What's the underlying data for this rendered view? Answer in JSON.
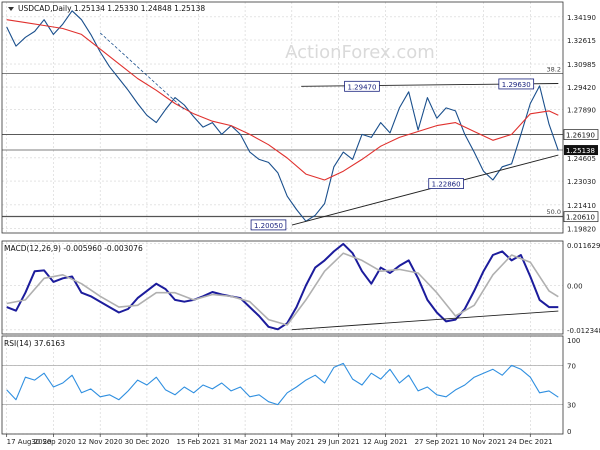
{
  "chart_data": [
    {
      "type": "line",
      "panel": "price",
      "title": "USDCAD,Daily  1.25134 1.25330 1.24848 1.25138",
      "watermark": "ActionForex.com",
      "ylim": [
        1.195,
        1.352
      ],
      "yticks": [
        "1.34190",
        "1.32615",
        "1.30985",
        "1.29420",
        "1.27890",
        "1.26190",
        "1.24605",
        "1.23030",
        "1.21410",
        "1.19820"
      ],
      "ytick_values": [
        1.3419,
        1.32615,
        1.30985,
        1.2942,
        1.2789,
        1.2619,
        1.24605,
        1.2303,
        1.2141,
        1.1982
      ],
      "current_label": "1.25138",
      "current_value": 1.25138,
      "hlines": [
        {
          "label": "38.2",
          "value": 1.3035,
          "color": "#555555"
        },
        {
          "label": "",
          "value": 1.2619,
          "color": "#555555"
        },
        {
          "label": "1.26190",
          "value": 1.2619,
          "color": "#555555"
        },
        {
          "label": "50.0",
          "value": 1.2064,
          "color": "#555555"
        },
        {
          "label": "1.20610",
          "value": 1.2061,
          "color": "#555555"
        },
        {
          "label": "",
          "value": 1.2514,
          "color": "#555555"
        }
      ],
      "annotations": [
        {
          "text": "1.29470",
          "x": 76,
          "y": 1.2947
        },
        {
          "text": "1.29630",
          "x": 109,
          "y": 1.2963
        },
        {
          "text": "1.22860",
          "x": 94,
          "y": 1.2286
        },
        {
          "text": "1.20050",
          "x": 56,
          "y": 1.2005
        }
      ],
      "trendlines": [
        {
          "x": [
            61,
            118
          ],
          "y": [
            1.2004,
            1.248
          ]
        },
        {
          "x": [
            63,
            118
          ],
          "y": [
            1.2947,
            1.2966
          ]
        }
      ],
      "series": [
        {
          "role": "close",
          "color": "#1a4f8c",
          "x": [
            0,
            2,
            4,
            6,
            8,
            10,
            12,
            14,
            16,
            18,
            20,
            22,
            24,
            26,
            28,
            30,
            32,
            34,
            36,
            38,
            40,
            42,
            44,
            46,
            48,
            50,
            52,
            54,
            56,
            58,
            60,
            62,
            64,
            66,
            68,
            70,
            72,
            74,
            76,
            78,
            80,
            82,
            84,
            86,
            88,
            90,
            92,
            94,
            96,
            98,
            100,
            102,
            104,
            106,
            108,
            110,
            112,
            114,
            116,
            118
          ],
          "values": [
            1.335,
            1.322,
            1.328,
            1.332,
            1.34,
            1.33,
            1.337,
            1.346,
            1.34,
            1.33,
            1.318,
            1.308,
            1.3,
            1.292,
            1.283,
            1.275,
            1.27,
            1.279,
            1.287,
            1.282,
            1.274,
            1.267,
            1.27,
            1.262,
            1.268,
            1.262,
            1.25,
            1.245,
            1.243,
            1.236,
            1.22,
            1.211,
            1.203,
            1.207,
            1.215,
            1.24,
            1.25,
            1.245,
            1.262,
            1.26,
            1.27,
            1.263,
            1.28,
            1.291,
            1.265,
            1.287,
            1.273,
            1.28,
            1.278,
            1.262,
            1.25,
            1.237,
            1.231,
            1.24,
            1.242,
            1.262,
            1.283,
            1.295,
            1.269,
            1.251
          ]
        },
        {
          "role": "moving-average",
          "color": "#e0312e",
          "x": [
            0,
            4,
            8,
            12,
            16,
            20,
            24,
            28,
            32,
            36,
            40,
            44,
            48,
            52,
            56,
            60,
            64,
            68,
            72,
            76,
            80,
            84,
            88,
            92,
            96,
            100,
            104,
            108,
            112,
            116,
            118
          ],
          "values": [
            1.34,
            1.338,
            1.336,
            1.334,
            1.33,
            1.32,
            1.31,
            1.3,
            1.292,
            1.283,
            1.276,
            1.271,
            1.268,
            1.262,
            1.255,
            1.246,
            1.235,
            1.231,
            1.237,
            1.245,
            1.254,
            1.26,
            1.264,
            1.268,
            1.27,
            1.264,
            1.258,
            1.262,
            1.276,
            1.278,
            1.275
          ]
        },
        {
          "role": "guide",
          "color": "#1a4f8c",
          "x": [
            20,
            38
          ],
          "values": [
            1.331,
            1.279
          ]
        }
      ]
    },
    {
      "type": "line",
      "panel": "macd",
      "title": "MACD(12,26,9) -0.005960 -0.003076",
      "ylim": [
        -0.0135,
        0.0124
      ],
      "yticks": [
        "0.011629",
        "0.00",
        "-0.012348"
      ],
      "ytick_values": [
        0.011629,
        0,
        -0.012348
      ],
      "current_label": "-0.005960",
      "trendlines": [
        {
          "x": [
            61,
            118
          ],
          "y": [
            -0.0123,
            -0.0071
          ]
        }
      ],
      "series": [
        {
          "role": "macd",
          "color": "#1c1c9c",
          "x": [
            0,
            2,
            4,
            6,
            8,
            10,
            12,
            14,
            16,
            18,
            20,
            22,
            24,
            26,
            28,
            30,
            32,
            34,
            36,
            38,
            40,
            42,
            44,
            46,
            48,
            50,
            52,
            54,
            56,
            58,
            60,
            62,
            64,
            66,
            68,
            70,
            72,
            74,
            76,
            78,
            80,
            82,
            84,
            86,
            88,
            90,
            92,
            94,
            96,
            98,
            100,
            102,
            104,
            106,
            108,
            110,
            112,
            114,
            116,
            118
          ],
          "values": [
            -0.006,
            -0.007,
            -0.002,
            0.004,
            0.0042,
            0.001,
            0.002,
            0.0025,
            -0.002,
            -0.003,
            -0.0045,
            -0.006,
            -0.0075,
            -0.0065,
            -0.0035,
            -0.0015,
            0.0005,
            -0.001,
            -0.004,
            -0.0045,
            -0.004,
            -0.003,
            -0.0018,
            -0.0025,
            -0.003,
            -0.0035,
            -0.006,
            -0.0085,
            -0.0115,
            -0.0122,
            -0.0105,
            -0.006,
            0.0,
            0.005,
            0.007,
            0.0095,
            0.0116,
            0.009,
            0.004,
            0.0005,
            0.005,
            0.0035,
            0.0055,
            0.007,
            0.002,
            -0.004,
            -0.0075,
            -0.01,
            -0.0095,
            -0.0065,
            -0.0015,
            0.004,
            0.0085,
            0.0095,
            0.007,
            0.0085,
            0.0025,
            -0.004,
            -0.006,
            -0.006
          ]
        },
        {
          "role": "signal",
          "color": "#b0b0b0",
          "x": [
            0,
            4,
            8,
            12,
            16,
            20,
            24,
            28,
            32,
            36,
            40,
            44,
            48,
            52,
            56,
            60,
            64,
            68,
            72,
            76,
            80,
            84,
            88,
            92,
            96,
            100,
            104,
            108,
            112,
            116,
            118
          ],
          "values": [
            -0.005,
            -0.004,
            0.002,
            0.003,
            0.0005,
            -0.003,
            -0.006,
            -0.0055,
            -0.002,
            -0.002,
            -0.004,
            -0.0025,
            -0.003,
            -0.0045,
            -0.0095,
            -0.011,
            -0.004,
            0.004,
            0.009,
            0.007,
            0.004,
            0.0045,
            0.0035,
            -0.002,
            -0.0085,
            -0.0055,
            0.003,
            0.0085,
            0.0065,
            -0.0015,
            -0.0031
          ]
        }
      ]
    },
    {
      "type": "line",
      "panel": "rsi",
      "title": "RSI(14) 37.6163",
      "ylim": [
        0,
        100
      ],
      "yticks": [
        "100",
        "70",
        "30",
        "0"
      ],
      "ytick_values": [
        100,
        70,
        30,
        0
      ],
      "hlines": [
        {
          "label": "",
          "value": 70,
          "color": "#aaaaaa"
        },
        {
          "label": "",
          "value": 30,
          "color": "#aaaaaa"
        }
      ],
      "series": [
        {
          "role": "rsi",
          "color": "#2f8fe0",
          "x": [
            0,
            2,
            4,
            6,
            8,
            10,
            12,
            14,
            16,
            18,
            20,
            22,
            24,
            26,
            28,
            30,
            32,
            34,
            36,
            38,
            40,
            42,
            44,
            46,
            48,
            50,
            52,
            54,
            56,
            58,
            60,
            62,
            64,
            66,
            68,
            70,
            72,
            74,
            76,
            78,
            80,
            82,
            84,
            86,
            88,
            90,
            92,
            94,
            96,
            98,
            100,
            102,
            104,
            106,
            108,
            110,
            112,
            114,
            116,
            118
          ],
          "values": [
            45,
            35,
            58,
            55,
            62,
            48,
            52,
            60,
            42,
            46,
            38,
            40,
            35,
            44,
            55,
            50,
            58,
            45,
            40,
            48,
            42,
            50,
            46,
            52,
            44,
            48,
            38,
            40,
            33,
            30,
            42,
            48,
            55,
            60,
            52,
            68,
            72,
            56,
            50,
            62,
            56,
            66,
            52,
            60,
            44,
            48,
            40,
            38,
            45,
            50,
            58,
            62,
            66,
            60,
            70,
            66,
            58,
            42,
            44,
            37.6
          ]
        }
      ]
    }
  ],
  "x_axis": {
    "categories": [
      "17 Aug 2020",
      "30 Sep 2020",
      "12 Nov 2020",
      "30 Dec 2020",
      "15 Feb 2021",
      "31 Mar 2021",
      "14 May 2021",
      "29 Jun 2021",
      "12 Aug 2021",
      "27 Sep 2021",
      "10 Nov 2021",
      "24 Dec 2021"
    ],
    "tick_index": [
      0,
      10,
      20,
      30,
      41,
      51,
      61,
      71,
      81,
      92,
      102,
      112
    ],
    "domain": [
      -1,
      119
    ]
  },
  "colors": {
    "grid": "#c8c8c8",
    "frame": "#333333",
    "label_bg": "#ffffff",
    "current_bg": "#111111",
    "current_text": "#ffffff",
    "annotation_box": "#1a237e",
    "watermark": "#dadada"
  }
}
